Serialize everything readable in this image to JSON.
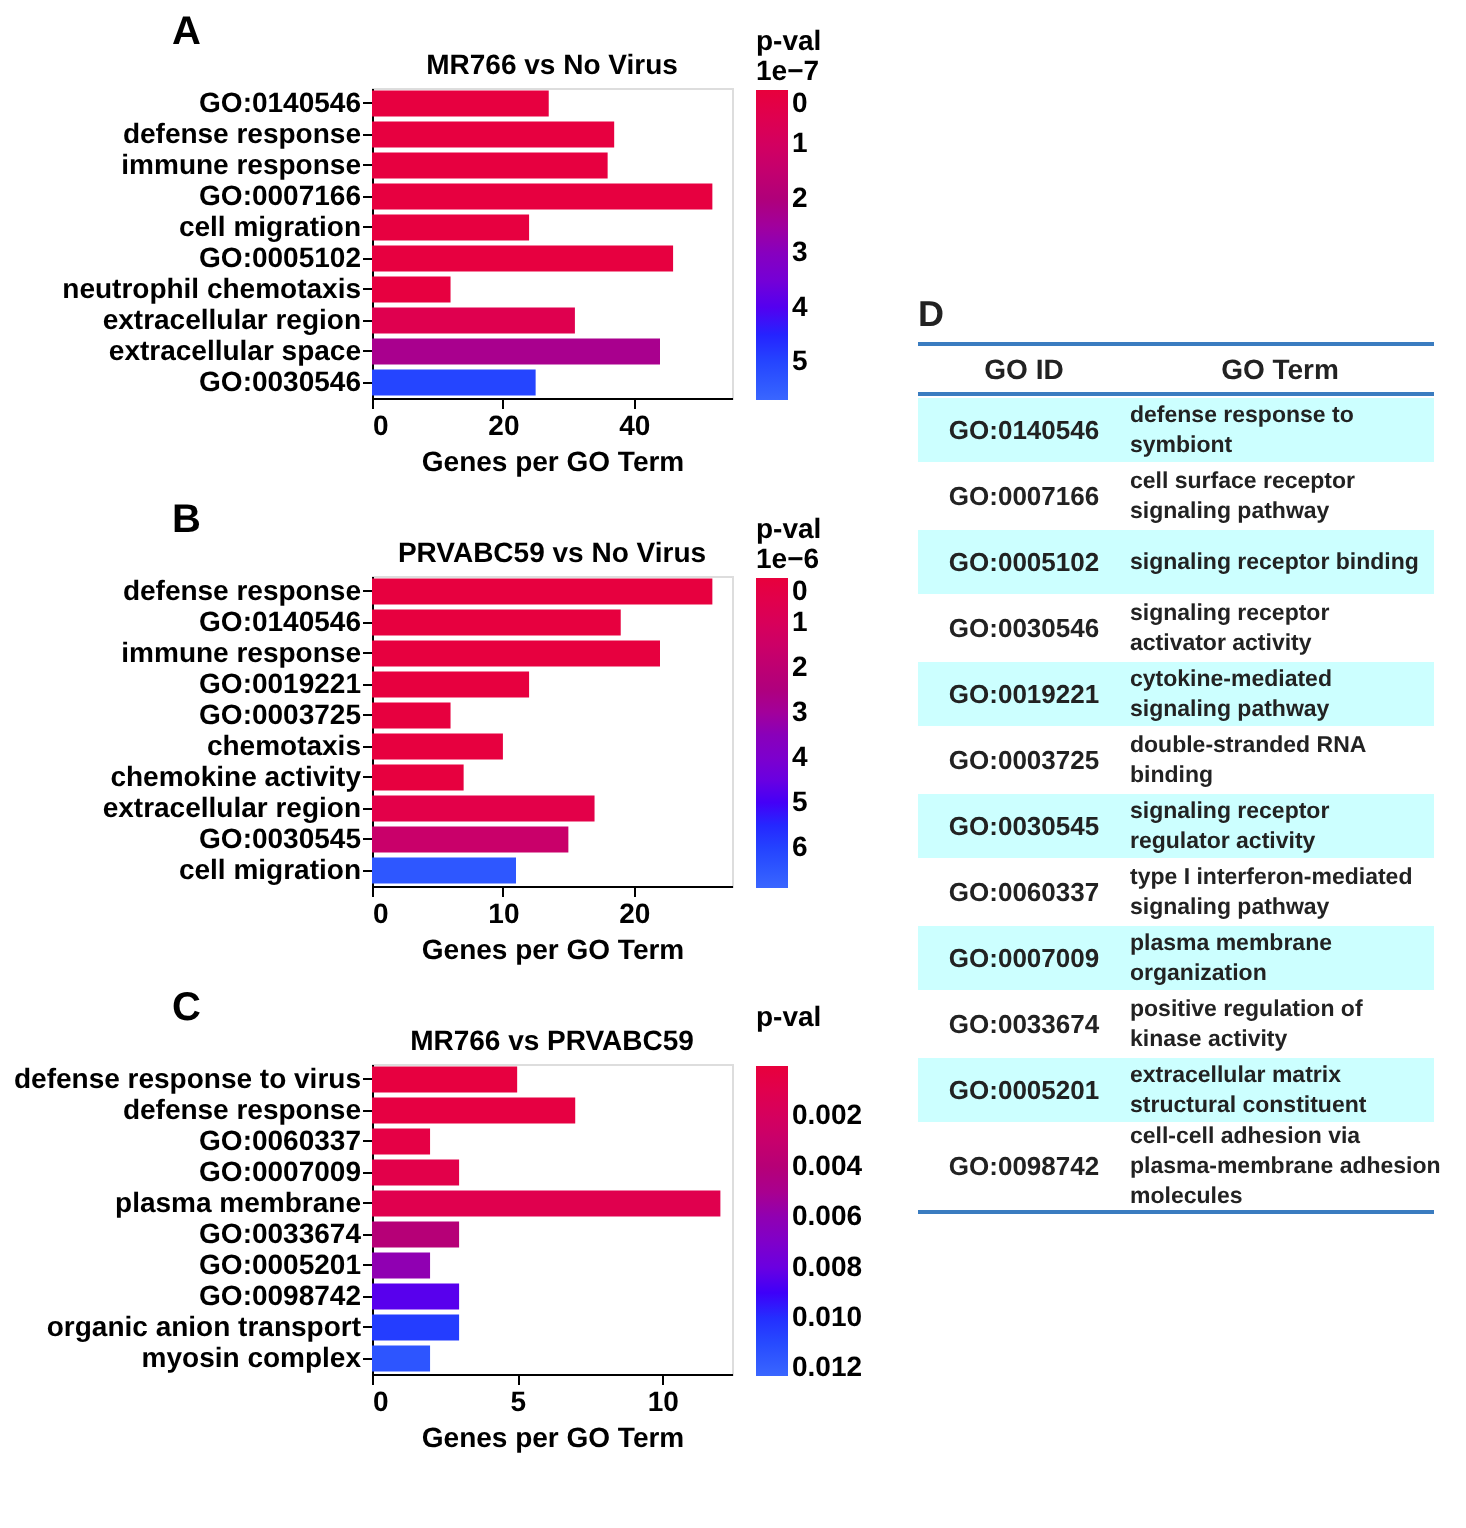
{
  "chart_data": [
    {
      "type": "bar",
      "orientation": "horizontal",
      "title": "MR766 vs No Virus",
      "xlabel": "Genes per GO Term",
      "clabel": "p-val",
      "annotations": [
        "A",
        "1e−7"
      ],
      "categories": [
        "GO:0140546",
        "defense response",
        "immune response",
        "GO:0007166",
        "cell migration",
        "GO:0005102",
        "neutrophil chemotaxis",
        "extracellular region",
        "extracellular space",
        "GO:0030546"
      ],
      "values": [
        27,
        37,
        36,
        52,
        24,
        46,
        12,
        31,
        44,
        25
      ],
      "cvalues": [
        0.1,
        0.1,
        0.1,
        0.1,
        0.1,
        0.1,
        0.1,
        0.5,
        2.3,
        5.0
      ],
      "xlim": [
        0,
        55
      ],
      "xticks": [
        0,
        20,
        40
      ],
      "clim": [
        0,
        5.7
      ],
      "cticks": [
        0,
        1,
        2,
        3,
        4,
        5
      ],
      "grid": false
    },
    {
      "type": "bar",
      "orientation": "horizontal",
      "title": "PRVABC59 vs No Virus",
      "xlabel": "Genes per GO Term",
      "clabel": "p-val",
      "annotations": [
        "B",
        "1e−6"
      ],
      "categories": [
        "defense response",
        "GO:0140546",
        "immune response",
        "GO:0019221",
        "GO:0003725",
        "chemotaxis",
        "chemokine activity",
        "extracellular region",
        "GO:0030545",
        "cell migration"
      ],
      "values": [
        26,
        19,
        22,
        12,
        6,
        10,
        7,
        17,
        15,
        11
      ],
      "cvalues": [
        0.1,
        0.1,
        0.1,
        0.1,
        0.1,
        0.1,
        0.1,
        0.4,
        1.6,
        6.5
      ],
      "xlim": [
        0,
        27.5
      ],
      "xticks": [
        0,
        10,
        20
      ],
      "clim": [
        0,
        6.9
      ],
      "cticks": [
        0,
        1,
        2,
        3,
        4,
        5,
        6
      ],
      "grid": false
    },
    {
      "type": "bar",
      "orientation": "horizontal",
      "title": "MR766 vs PRVABC59",
      "xlabel": "Genes per GO Term",
      "clabel": "p-val",
      "annotations": [
        "C"
      ],
      "categories": [
        "defense response to virus",
        "defense response",
        "GO:0060337",
        "GO:0007009",
        "plasma membrane",
        "GO:0033674",
        "GO:0005201",
        "GO:0098742",
        "organic anion transport",
        "myosin complex"
      ],
      "values": [
        5,
        7,
        2,
        3,
        12,
        3,
        2,
        3,
        3,
        2
      ],
      "cvalues": [
        0.0002,
        0.0003,
        0.0005,
        0.0008,
        0.001,
        0.004,
        0.006,
        0.0085,
        0.0105,
        0.0115
      ],
      "xlim": [
        0,
        12.4
      ],
      "xticks": [
        0,
        5,
        10
      ],
      "clim": [
        0,
        0.0123
      ],
      "cticks": [
        0.002,
        0.004,
        0.006,
        0.008,
        {
          "value": 0.01,
          "label": "0.010"
        },
        0.012
      ],
      "grid": false
    },
    {
      "type": "other",
      "annotations": [
        "D",
        "GO ID",
        "GO Term",
        "GO:0140546",
        "defense response to symbiont",
        "GO:0007166",
        "cell surface receptor signaling pathway",
        "GO:0005102",
        "signaling receptor binding",
        "GO:0030546",
        "signaling receptor activator activity",
        "GO:0019221",
        "cytokine-mediated signaling pathway",
        "GO:0003725",
        "double-stranded RNA binding",
        "GO:0030545",
        "signaling receptor regulator activity",
        "GO:0060337",
        "type I interferon-mediated signaling pathway",
        "GO:0007009",
        "plasma membrane organization",
        "GO:0033674",
        "positive regulation of kinase activity",
        "GO:0005201",
        "extracellular matrix structural constituent",
        "GO:0098742",
        "cell-cell adhesion via plasma-membrane adhesion molecules"
      ],
      "colors": [
        "#ccffff",
        "#ffffff",
        "#ccffff",
        "#ffffff",
        "#ccffff",
        "#ffffff",
        "#ccffff",
        "#ffffff",
        "#ccffff",
        "#ffffff",
        "#ccffff",
        "#ffffff"
      ]
    }
  ]
}
